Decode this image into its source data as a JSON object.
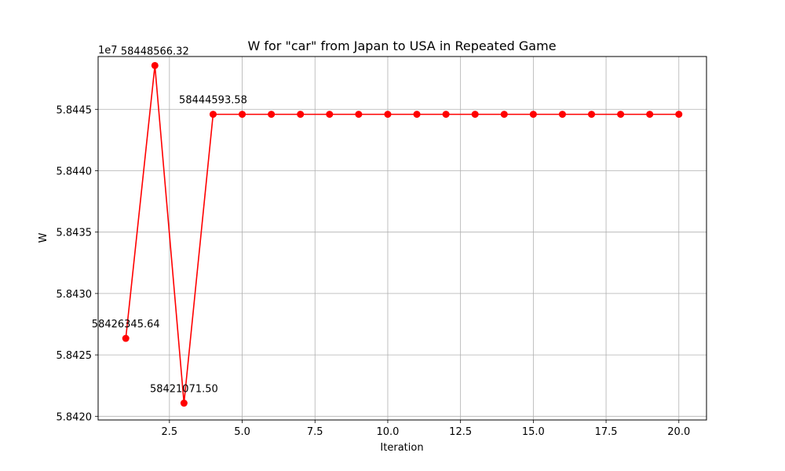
{
  "chart_data": {
    "type": "line",
    "title": "W for \"car\" from Japan to USA in Repeated Game",
    "xlabel": "Iteration",
    "ylabel": "W",
    "y_offset_label": "1e7",
    "xlim": [
      0.05,
      20.95
    ],
    "ylim": [
      5.84197,
      5.84493
    ],
    "grid": true,
    "x_ticks": [
      2.5,
      5.0,
      7.5,
      10.0,
      12.5,
      15.0,
      17.5,
      20.0
    ],
    "x_tick_labels": [
      "2.5",
      "5.0",
      "7.5",
      "10.0",
      "12.5",
      "15.0",
      "17.5",
      "20.0"
    ],
    "y_ticks": [
      5.842,
      5.8425,
      5.843,
      5.8435,
      5.844,
      5.8445
    ],
    "y_tick_labels": [
      "5.8420",
      "5.8425",
      "5.8430",
      "5.8435",
      "5.8440",
      "5.8445"
    ],
    "series": [
      {
        "color": "#ff0000",
        "x": [
          1,
          2,
          3,
          4,
          5,
          6,
          7,
          8,
          9,
          10,
          11,
          12,
          13,
          14,
          15,
          16,
          17,
          18,
          19,
          20
        ],
        "values": [
          58426345.64,
          58448566.32,
          58421071.5,
          58444593.58,
          58444593.58,
          58444593.58,
          58444593.58,
          58444593.58,
          58444593.58,
          58444593.58,
          58444593.58,
          58444593.58,
          58444593.58,
          58444593.58,
          58444593.58,
          58444593.58,
          58444593.58,
          58444593.58,
          58444593.58,
          58444593.58
        ]
      }
    ],
    "annotations": [
      {
        "x": 1,
        "y": 58426345.64,
        "text": "58426345.64"
      },
      {
        "x": 2,
        "y": 58448566.32,
        "text": "58448566.32"
      },
      {
        "x": 3,
        "y": 58421071.5,
        "text": "58421071.50"
      },
      {
        "x": 4,
        "y": 58444593.58,
        "text": "58444593.58"
      }
    ]
  }
}
